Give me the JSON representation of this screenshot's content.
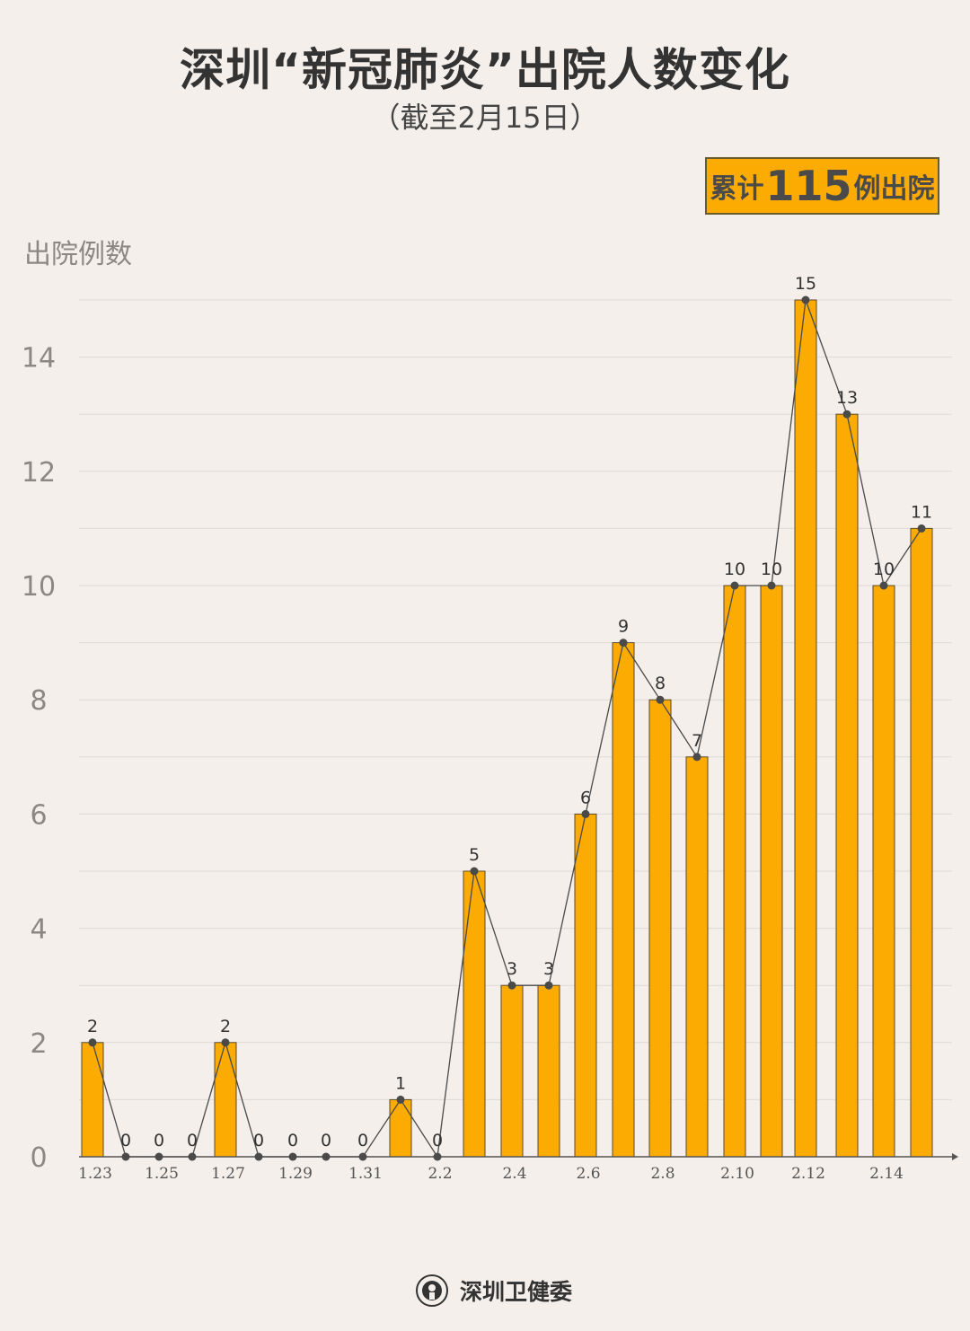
{
  "chart_data": {
    "type": "bar",
    "title": "深圳“新冠肺炎”出院人数变化",
    "subtitle": "（截至2月15日）",
    "ylabel": "出院例数",
    "xlabel": "",
    "ylim": [
      0,
      15
    ],
    "yticks": [
      0,
      2,
      4,
      6,
      8,
      10,
      12,
      14
    ],
    "grid": true,
    "categories": [
      "1.23",
      "1.24",
      "1.25",
      "1.26",
      "1.27",
      "1.28",
      "1.29",
      "1.30",
      "1.31",
      "2.1",
      "2.2",
      "2.3",
      "2.4",
      "2.5",
      "2.6",
      "2.7",
      "2.8",
      "2.9",
      "2.10",
      "2.11",
      "2.12",
      "2.13",
      "2.14",
      "2.15"
    ],
    "xtick_labels": [
      "1.23",
      "1.25",
      "1.27",
      "1.29",
      "1.31",
      "2.2",
      "2.4",
      "2.6",
      "2.8",
      "2.10",
      "2.12",
      "2.14"
    ],
    "values": [
      2,
      0,
      0,
      0,
      2,
      0,
      0,
      0,
      0,
      1,
      0,
      5,
      3,
      3,
      6,
      9,
      8,
      7,
      10,
      10,
      15,
      13,
      10,
      11
    ],
    "overlay": "line with markers over bars",
    "colors": {
      "bar": "#fbab02",
      "bar_outline": "#5b4a2a",
      "line": "#4a4a4a",
      "background": "#f4efea"
    }
  },
  "badge": {
    "prefix": "累计",
    "number": "115",
    "suffix": "例出院"
  },
  "footer": {
    "org": "深圳卫健委",
    "logo_icon": "health-commission-emblem"
  }
}
